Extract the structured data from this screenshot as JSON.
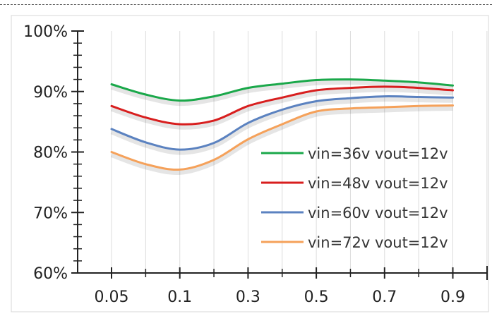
{
  "chart_data": {
    "type": "line",
    "title": "",
    "xlabel": "",
    "ylabel": "",
    "categories": [
      "0.05",
      "0.1",
      "0.3",
      "0.5",
      "0.7",
      "0.9"
    ],
    "x": [
      0.05,
      0.075,
      0.1,
      0.2,
      0.3,
      0.4,
      0.5,
      0.6,
      0.7,
      0.8,
      0.9
    ],
    "ylim": [
      60,
      100
    ],
    "yticks": [
      "60%",
      "70%",
      "80%",
      "90%",
      "100%"
    ],
    "grid": "vertical",
    "legend_position": "lower-right",
    "series": [
      {
        "name": "vin=36v vout=12v",
        "color": "#1aa84a",
        "values": [
          91.2,
          89.5,
          88.5,
          89.2,
          90.6,
          91.3,
          91.9,
          92.0,
          91.8,
          91.5,
          91.0
        ]
      },
      {
        "name": "vin=48v vout=12v",
        "color": "#d81e1e",
        "values": [
          87.6,
          85.7,
          84.6,
          85.2,
          87.6,
          89.0,
          90.2,
          90.6,
          90.8,
          90.6,
          90.2
        ]
      },
      {
        "name": "vin=60v vout=12v",
        "color": "#5b82c0",
        "values": [
          83.8,
          81.6,
          80.4,
          81.5,
          84.8,
          87.0,
          88.4,
          88.9,
          89.2,
          89.1,
          89.0
        ]
      },
      {
        "name": "vin=72v vout=12v",
        "color": "#f5a15a",
        "values": [
          80.0,
          78.0,
          77.1,
          78.7,
          82.1,
          84.6,
          86.7,
          87.2,
          87.4,
          87.6,
          87.7
        ]
      }
    ]
  }
}
